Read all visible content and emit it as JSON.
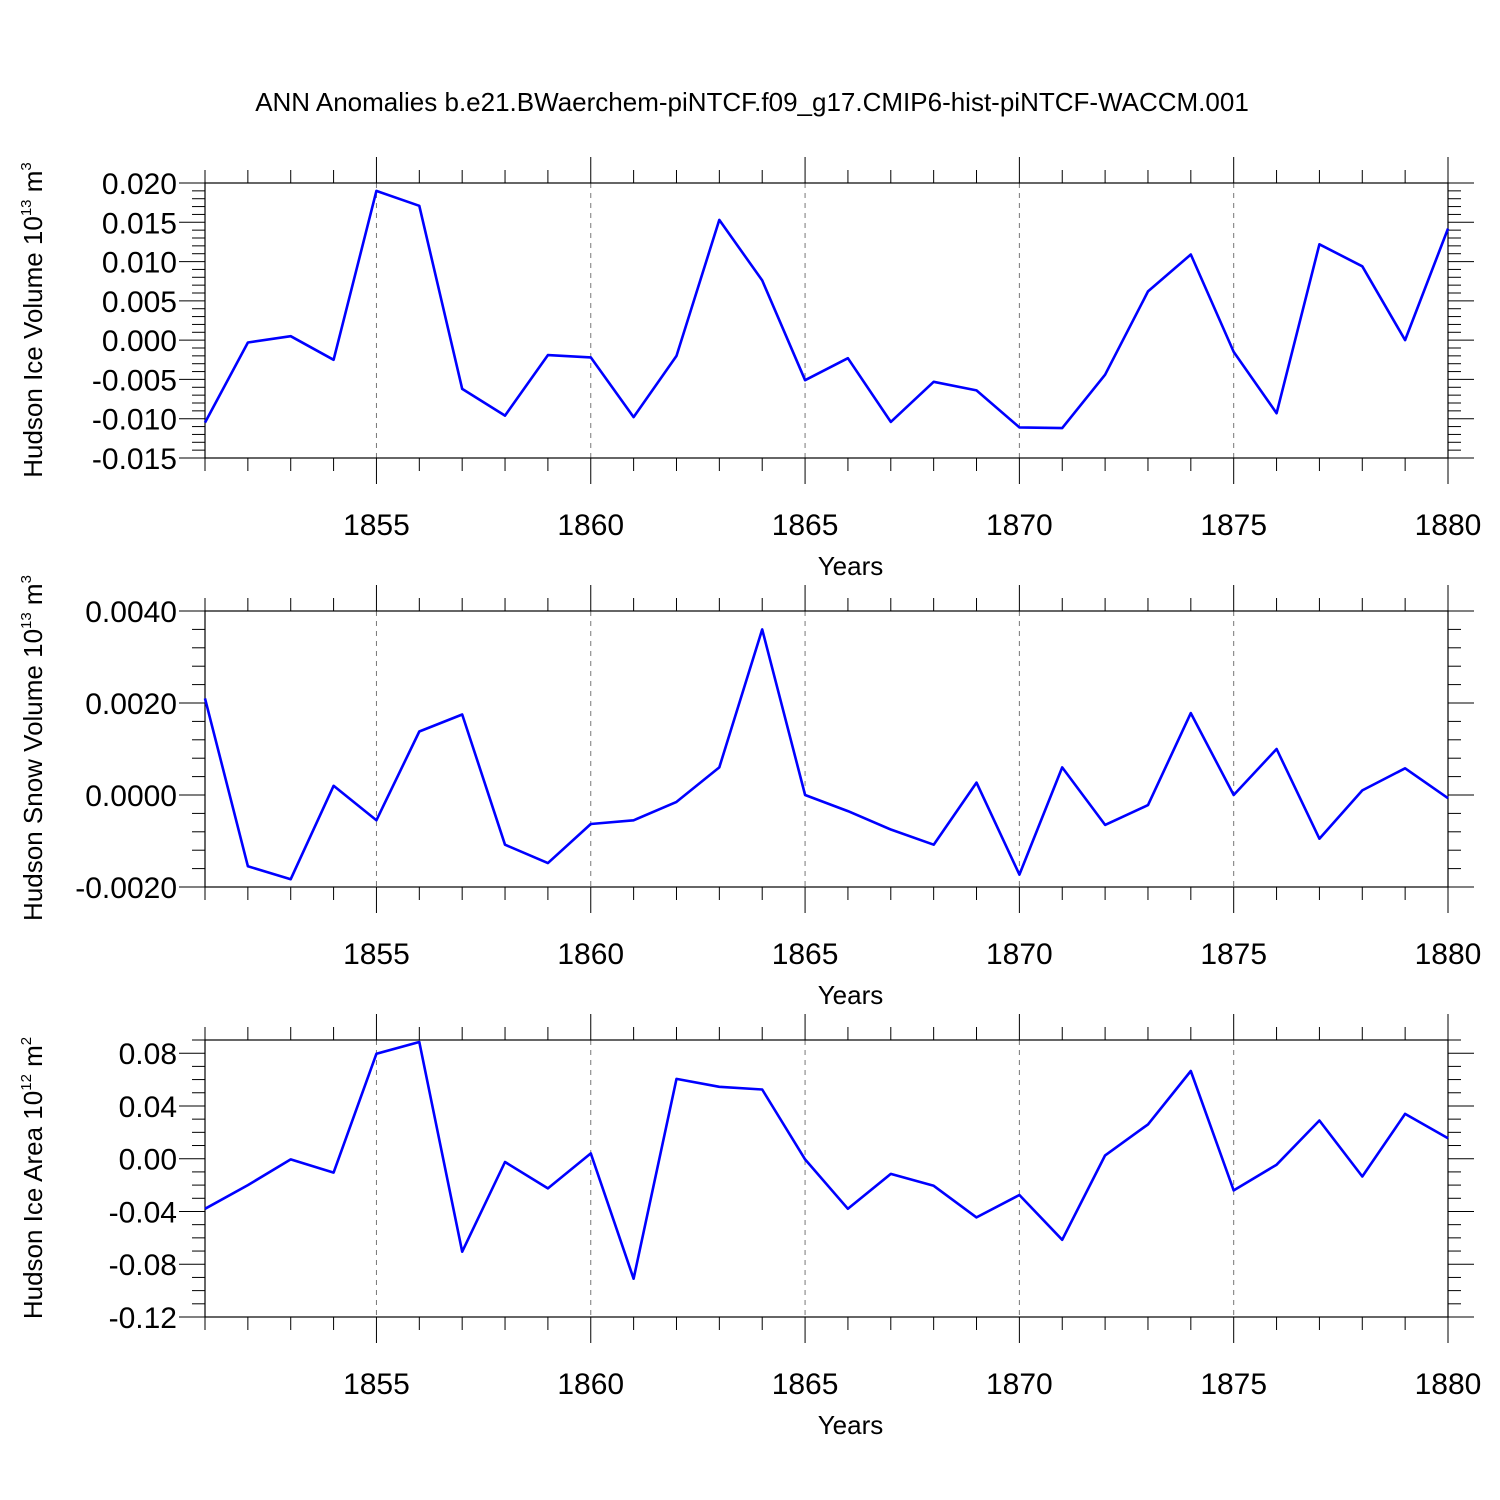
{
  "figure_title": "ANN Anomalies b.e21.BWaerchem-piNTCF.f09_g17.CMIP6-hist-piNTCF-WACCM.001",
  "series_color": "#0000ff",
  "chart_data": [
    {
      "type": "line",
      "ylabel": "Hudson Ice Volume 10",
      "ylabel_exponent": "13",
      "ylabel_unit": " m",
      "ylabel_unit_exponent": "3",
      "xlabel": "Years",
      "xlim": [
        1851,
        1880
      ],
      "ylim": [
        -0.015,
        0.02
      ],
      "yticks": [
        -0.015,
        -0.01,
        -0.005,
        0.0,
        0.005,
        0.01,
        0.015,
        0.02
      ],
      "yticklabels": [
        "-0.015",
        "-0.010",
        "-0.005",
        "0.000",
        "0.005",
        "0.010",
        "0.015",
        "0.020"
      ],
      "yminor_step": 0.001,
      "xticks": [
        1855,
        1860,
        1865,
        1870,
        1875,
        1880
      ],
      "xticklabels": [
        "1855",
        "1860",
        "1865",
        "1870",
        "1875",
        "1880"
      ],
      "xminor_step": 1,
      "grid_x": [
        1855,
        1860,
        1865,
        1870,
        1875
      ],
      "x": [
        1851,
        1852,
        1853,
        1854,
        1855,
        1856,
        1857,
        1858,
        1859,
        1860,
        1861,
        1862,
        1863,
        1864,
        1865,
        1866,
        1867,
        1868,
        1869,
        1870,
        1871,
        1872,
        1873,
        1874,
        1875,
        1876,
        1877,
        1878,
        1879,
        1880
      ],
      "values": [
        -0.0105,
        -0.0003,
        0.0005,
        -0.0025,
        0.019,
        0.0171,
        -0.0062,
        -0.0096,
        -0.0019,
        -0.0022,
        -0.0098,
        -0.002,
        0.0153,
        0.0076,
        -0.0051,
        -0.0023,
        -0.0104,
        -0.0053,
        -0.0064,
        -0.0111,
        -0.0112,
        -0.0044,
        0.0062,
        0.0109,
        -0.0015,
        -0.0093,
        0.0122,
        0.0094,
        -0.0,
        0.0142
      ]
    },
    {
      "type": "line",
      "ylabel": "Hudson Snow Volume 10",
      "ylabel_exponent": "13",
      "ylabel_unit": " m",
      "ylabel_unit_exponent": "3",
      "xlabel": "Years",
      "xlim": [
        1851,
        1880
      ],
      "ylim": [
        -0.002,
        0.004
      ],
      "yticks": [
        -0.002,
        0.0,
        0.002,
        0.004
      ],
      "yticklabels": [
        "-0.0020",
        "0.0000",
        "0.0020",
        "0.0040"
      ],
      "yminor_step": 0.0004,
      "xticks": [
        1855,
        1860,
        1865,
        1870,
        1875,
        1880
      ],
      "xticklabels": [
        "1855",
        "1860",
        "1865",
        "1870",
        "1875",
        "1880"
      ],
      "xminor_step": 1,
      "grid_x": [
        1855,
        1860,
        1865,
        1870,
        1875
      ],
      "x": [
        1851,
        1852,
        1853,
        1854,
        1855,
        1856,
        1857,
        1858,
        1859,
        1860,
        1861,
        1862,
        1863,
        1864,
        1865,
        1866,
        1867,
        1868,
        1869,
        1870,
        1871,
        1872,
        1873,
        1874,
        1875,
        1876,
        1877,
        1878,
        1879,
        1880
      ],
      "values": [
        0.0021,
        -0.00155,
        -0.00183,
        0.0002,
        -0.00055,
        0.00138,
        0.00175,
        -0.00108,
        -0.00148,
        -0.00063,
        -0.00055,
        -0.00015,
        0.0006,
        0.0036,
        0.0,
        -0.00035,
        -0.00075,
        -0.00108,
        0.00027,
        -0.00173,
        0.0006,
        -0.00065,
        -0.00022,
        0.00178,
        0.0,
        0.001,
        -0.00095,
        0.0001,
        0.00058,
        -7e-05
      ]
    },
    {
      "type": "line",
      "ylabel": "Hudson Ice Area 10",
      "ylabel_exponent": "12",
      "ylabel_unit": " m",
      "ylabel_unit_exponent": "2",
      "xlabel": "Years",
      "xlim": [
        1851,
        1880
      ],
      "ylim": [
        -0.12,
        0.09
      ],
      "yticks": [
        -0.12,
        -0.08,
        -0.04,
        0.0,
        0.04,
        0.08
      ],
      "yticklabels": [
        "-0.12",
        "-0.08",
        "-0.04",
        "0.00",
        "0.04",
        "0.08"
      ],
      "yminor_step": 0.01,
      "xticks": [
        1855,
        1860,
        1865,
        1870,
        1875,
        1880
      ],
      "xticklabels": [
        "1855",
        "1860",
        "1865",
        "1870",
        "1875",
        "1880"
      ],
      "xminor_step": 1,
      "grid_x": [
        1855,
        1860,
        1865,
        1870,
        1875
      ],
      "x": [
        1851,
        1852,
        1853,
        1854,
        1855,
        1856,
        1857,
        1858,
        1859,
        1860,
        1861,
        1862,
        1863,
        1864,
        1865,
        1866,
        1867,
        1868,
        1869,
        1870,
        1871,
        1872,
        1873,
        1874,
        1875,
        1876,
        1877,
        1878,
        1879,
        1880
      ],
      "values": [
        -0.038,
        -0.02,
        -0.0005,
        -0.0105,
        0.0795,
        0.0885,
        -0.0705,
        -0.0025,
        -0.0225,
        0.004,
        -0.091,
        0.0605,
        0.0545,
        0.0525,
        -0.0005,
        -0.038,
        -0.0115,
        -0.0205,
        -0.0445,
        -0.0275,
        -0.0615,
        0.0025,
        0.026,
        0.0665,
        -0.024,
        -0.0045,
        0.029,
        -0.0135,
        0.034,
        0.0155
      ]
    }
  ]
}
